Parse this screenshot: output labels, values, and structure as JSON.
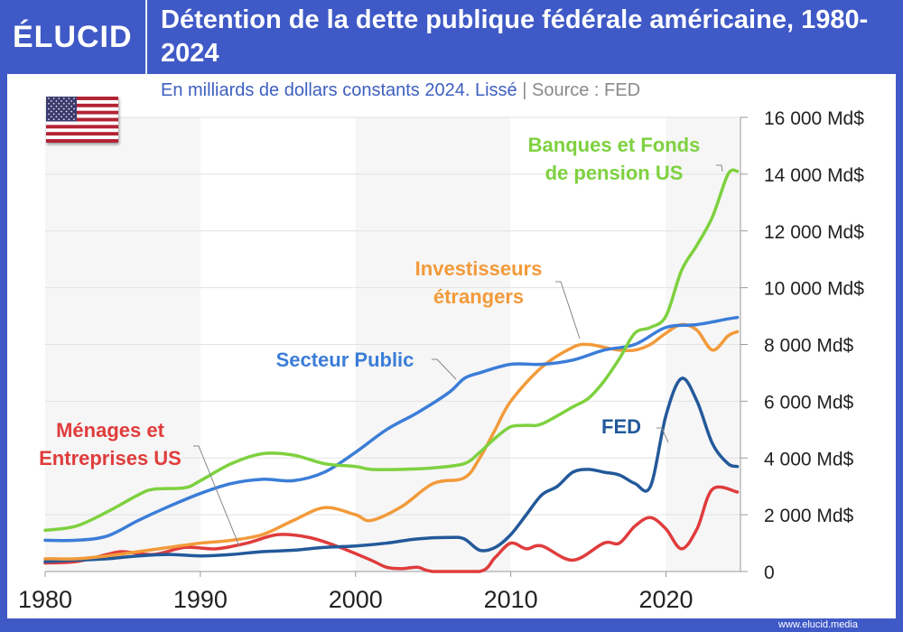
{
  "header": {
    "logo": "ÉLUCID",
    "title": "Détention de la dette publique fédérale américaine, 1980-2024"
  },
  "subtitle": {
    "text": "En milliards de dollars constants 2024. Lissé",
    "separator": "|",
    "source": "Source : FED"
  },
  "footer": {
    "url": "www.elucid.media"
  },
  "colors": {
    "frame": "#3f59c6",
    "banques": "#7ed13f",
    "public": "#3b7dd8",
    "etrangers": "#f29a3a",
    "fed": "#23599a",
    "menages": "#e03c3c"
  },
  "chart_data": {
    "type": "line",
    "title": "Détention de la dette publique fédérale américaine, 1980-2024",
    "subtitle": "En milliards de dollars constants 2024. Lissé",
    "xlim": [
      1980,
      2024.8
    ],
    "ylim": [
      0,
      16000
    ],
    "x_ticks": [
      "1980",
      "1990",
      "2000",
      "2010",
      "2020"
    ],
    "y_ticks": [
      "0",
      "2 000 Md$",
      "4 000 Md$",
      "6 000 Md$",
      "8 000 Md$",
      "10 000 Md$",
      "12 000 Md$",
      "14 000 Md$",
      "16 000 Md$"
    ],
    "grid": true,
    "series": [
      {
        "name": "Banques et Fonds de pension US",
        "color": "#7ed13f",
        "label_lines": [
          "Banques et Fonds",
          "de pension US"
        ],
        "points": [
          [
            1980,
            1450
          ],
          [
            1982,
            1600
          ],
          [
            1984,
            2100
          ],
          [
            1986,
            2700
          ],
          [
            1987,
            2900
          ],
          [
            1989,
            2950
          ],
          [
            1990,
            3200
          ],
          [
            1992,
            3800
          ],
          [
            1994,
            4150
          ],
          [
            1996,
            4100
          ],
          [
            1998,
            3800
          ],
          [
            2000,
            3700
          ],
          [
            2001,
            3600
          ],
          [
            2003,
            3600
          ],
          [
            2005,
            3650
          ],
          [
            2007,
            3800
          ],
          [
            2008,
            4200
          ],
          [
            2009,
            4700
          ],
          [
            2010,
            5100
          ],
          [
            2011,
            5150
          ],
          [
            2012,
            5200
          ],
          [
            2014,
            5800
          ],
          [
            2015,
            6100
          ],
          [
            2016,
            6700
          ],
          [
            2017,
            7500
          ],
          [
            2018,
            8400
          ],
          [
            2019,
            8600
          ],
          [
            2020,
            9000
          ],
          [
            2021,
            10600
          ],
          [
            2022,
            11500
          ],
          [
            2023,
            12500
          ],
          [
            2024,
            14000
          ],
          [
            2024.6,
            14100
          ]
        ]
      },
      {
        "name": "Investisseurs étrangers",
        "color": "#f29a3a",
        "label_lines": [
          "Investisseurs",
          "étrangers"
        ],
        "points": [
          [
            1980,
            450
          ],
          [
            1982,
            450
          ],
          [
            1984,
            550
          ],
          [
            1986,
            700
          ],
          [
            1988,
            850
          ],
          [
            1990,
            1000
          ],
          [
            1992,
            1100
          ],
          [
            1994,
            1300
          ],
          [
            1996,
            1800
          ],
          [
            1998,
            2250
          ],
          [
            2000,
            2000
          ],
          [
            2001,
            1800
          ],
          [
            2003,
            2300
          ],
          [
            2005,
            3100
          ],
          [
            2007,
            3300
          ],
          [
            2008,
            4000
          ],
          [
            2009,
            5000
          ],
          [
            2010,
            6000
          ],
          [
            2012,
            7200
          ],
          [
            2014,
            7900
          ],
          [
            2015,
            8000
          ],
          [
            2016,
            7900
          ],
          [
            2017,
            7800
          ],
          [
            2018,
            7800
          ],
          [
            2019,
            8000
          ],
          [
            2020,
            8400
          ],
          [
            2021,
            8700
          ],
          [
            2022,
            8500
          ],
          [
            2023,
            7800
          ],
          [
            2024,
            8300
          ],
          [
            2024.6,
            8450
          ]
        ]
      },
      {
        "name": "Secteur Public",
        "color": "#3b7dd8",
        "label_lines": [
          "Secteur Public"
        ],
        "points": [
          [
            1980,
            1100
          ],
          [
            1982,
            1100
          ],
          [
            1984,
            1250
          ],
          [
            1986,
            1800
          ],
          [
            1988,
            2300
          ],
          [
            1990,
            2750
          ],
          [
            1992,
            3100
          ],
          [
            1994,
            3250
          ],
          [
            1996,
            3200
          ],
          [
            1998,
            3500
          ],
          [
            2000,
            4200
          ],
          [
            2002,
            5000
          ],
          [
            2004,
            5600
          ],
          [
            2006,
            6300
          ],
          [
            2007,
            6800
          ],
          [
            2008,
            7000
          ],
          [
            2010,
            7300
          ],
          [
            2012,
            7300
          ],
          [
            2014,
            7450
          ],
          [
            2016,
            7800
          ],
          [
            2018,
            8000
          ],
          [
            2020,
            8600
          ],
          [
            2022,
            8700
          ],
          [
            2024,
            8900
          ],
          [
            2024.6,
            8950
          ]
        ]
      },
      {
        "name": "FED",
        "color": "#23599a",
        "label_lines": [
          "FED"
        ],
        "points": [
          [
            1980,
            350
          ],
          [
            1982,
            400
          ],
          [
            1984,
            450
          ],
          [
            1986,
            550
          ],
          [
            1988,
            600
          ],
          [
            1990,
            550
          ],
          [
            1992,
            600
          ],
          [
            1994,
            700
          ],
          [
            1996,
            750
          ],
          [
            1998,
            850
          ],
          [
            2000,
            900
          ],
          [
            2002,
            1000
          ],
          [
            2004,
            1150
          ],
          [
            2006,
            1200
          ],
          [
            2007,
            1150
          ],
          [
            2008,
            750
          ],
          [
            2009,
            850
          ],
          [
            2010,
            1300
          ],
          [
            2011,
            2000
          ],
          [
            2012,
            2700
          ],
          [
            2013,
            3000
          ],
          [
            2014,
            3500
          ],
          [
            2015,
            3600
          ],
          [
            2016,
            3500
          ],
          [
            2017,
            3400
          ],
          [
            2018,
            3100
          ],
          [
            2019,
            3000
          ],
          [
            2020,
            5500
          ],
          [
            2021,
            6800
          ],
          [
            2022,
            6000
          ],
          [
            2023,
            4500
          ],
          [
            2024,
            3800
          ],
          [
            2024.6,
            3700
          ]
        ]
      },
      {
        "name": "Ménages et Entreprises US",
        "color": "#e03c3c",
        "label_lines": [
          "Ménages et",
          "Entreprises US"
        ],
        "points": [
          [
            1980,
            300
          ],
          [
            1982,
            350
          ],
          [
            1984,
            600
          ],
          [
            1985,
            700
          ],
          [
            1987,
            600
          ],
          [
            1989,
            850
          ],
          [
            1991,
            800
          ],
          [
            1993,
            1000
          ],
          [
            1995,
            1300
          ],
          [
            1997,
            1200
          ],
          [
            1999,
            850
          ],
          [
            2001,
            400
          ],
          [
            2002,
            150
          ],
          [
            2003,
            100
          ],
          [
            2004,
            150
          ],
          [
            2005,
            0
          ],
          [
            2008,
            0
          ],
          [
            2009,
            500
          ],
          [
            2010,
            1000
          ],
          [
            2011,
            800
          ],
          [
            2012,
            900
          ],
          [
            2014,
            400
          ],
          [
            2016,
            1000
          ],
          [
            2017,
            1000
          ],
          [
            2018,
            1600
          ],
          [
            2019,
            1900
          ],
          [
            2020,
            1500
          ],
          [
            2021,
            800
          ],
          [
            2022,
            1500
          ],
          [
            2023,
            2900
          ],
          [
            2024.6,
            2800
          ]
        ]
      }
    ]
  }
}
